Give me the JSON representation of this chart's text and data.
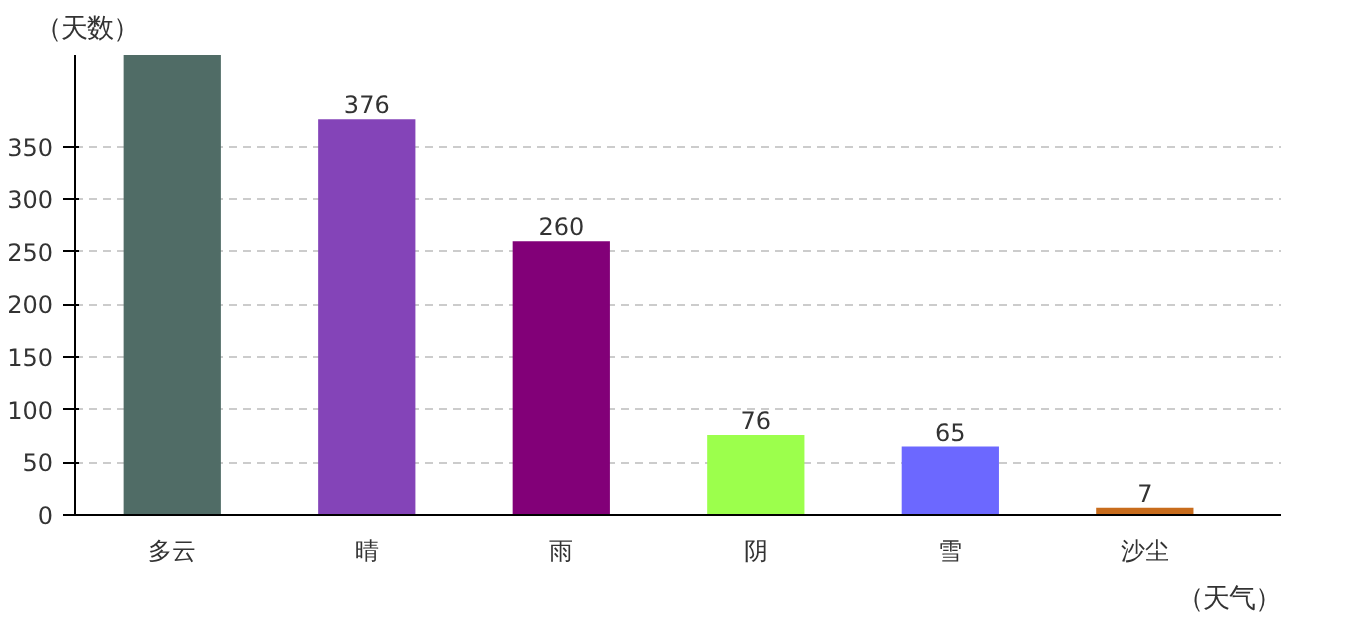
{
  "chart_data": {
    "type": "bar",
    "xlabel": "（天气）",
    "ylabel": "（天数）",
    "categories": [
      "多云",
      "晴",
      "雨",
      "阴",
      "雪",
      "沙尘"
    ],
    "values": [
      437,
      376,
      260,
      76,
      65,
      7
    ],
    "value_labels": [
      null,
      "376",
      "260",
      "76",
      "65",
      "7"
    ],
    "colors": [
      "#506c66",
      "#8444b8",
      "#820078",
      "#9cff4c",
      "#6c68ff",
      "#c86c1c"
    ],
    "ylim": [
      0,
      437
    ],
    "yticks": [
      0,
      50,
      100,
      150,
      200,
      250,
      300,
      350
    ],
    "grid": "y"
  }
}
